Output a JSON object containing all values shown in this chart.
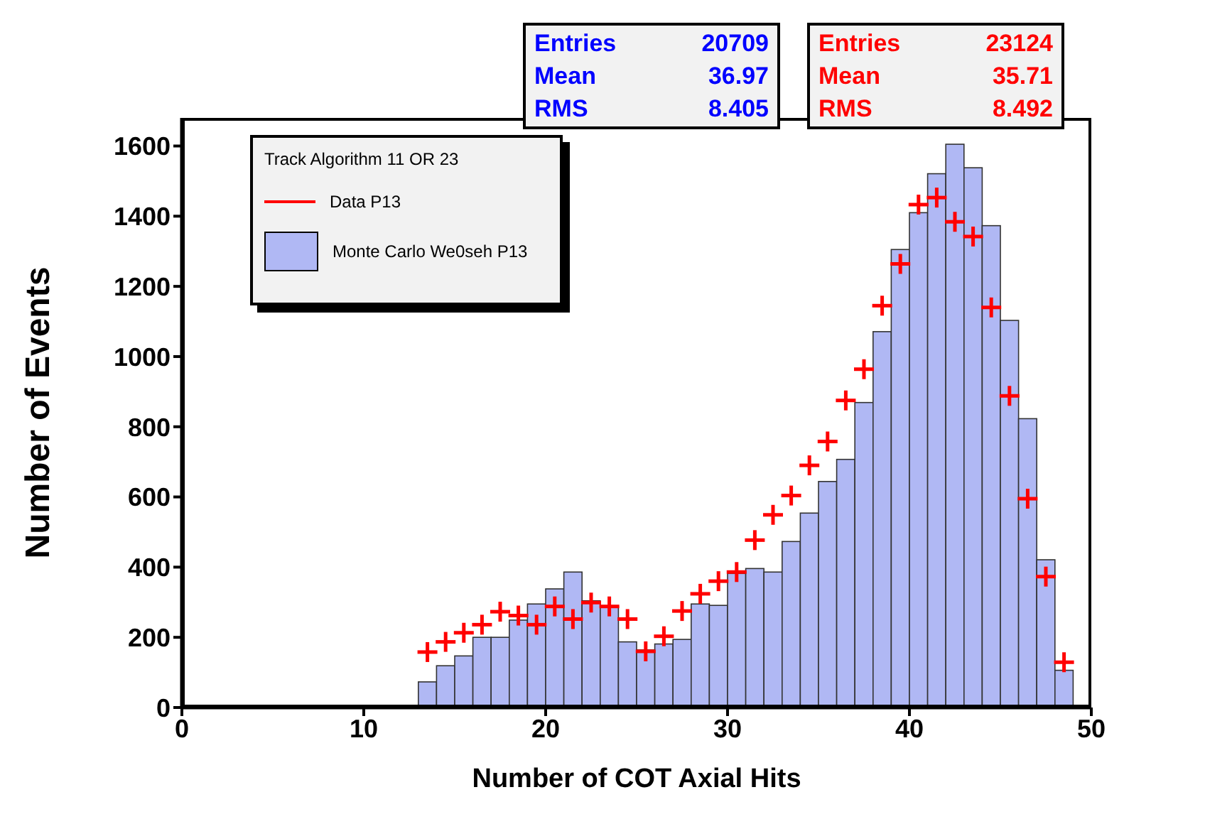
{
  "chart_data": {
    "type": "histogram",
    "xlabel": "Number of COT Axial Hits",
    "ylabel": "Number of Events",
    "legend_title": "Track Algorithm 11 OR 23",
    "legend": "top left",
    "marker": "cross",
    "xlim": [
      0,
      50
    ],
    "xticks": [
      0,
      10,
      20,
      30,
      40,
      50
    ],
    "ylim": [
      0,
      1680
    ],
    "yticks": [
      0,
      200,
      400,
      600,
      800,
      1000,
      1200,
      1400,
      1600
    ],
    "annotations": [
      "Entries 20709",
      "Mean 36.97",
      "RMS 8.405",
      "Entries 23124",
      "Mean 35.71",
      "RMS 8.492"
    ],
    "series": [
      {
        "type": "scatter",
        "name": "Data P13",
        "color": "#ff0000",
        "x": [
          13.5,
          14.5,
          15.5,
          16.5,
          17.5,
          18.5,
          19.5,
          20.5,
          21.5,
          22.5,
          23.5,
          24.5,
          25.5,
          26.5,
          27.5,
          28.5,
          29.5,
          30.5,
          31.5,
          32.5,
          33.5,
          34.5,
          35.5,
          36.5,
          37.5,
          38.5,
          39.5,
          40.5,
          41.5,
          42.5,
          43.5,
          44.5,
          45.5,
          46.5,
          47.5,
          48.5
        ],
        "values": [
          158,
          187,
          213,
          236,
          273,
          262,
          236,
          288,
          252,
          299,
          288,
          252,
          160,
          203,
          275,
          324,
          360,
          386,
          477,
          549,
          604,
          690,
          758,
          875,
          964,
          1145,
          1264,
          1433,
          1453,
          1384,
          1342,
          1140,
          888,
          595,
          373,
          129
        ]
      },
      {
        "name": "Monte Carlo We0seh P13",
        "color": "#b0b8f4",
        "bins": [
          13,
          14,
          15,
          16,
          17,
          18,
          19,
          20,
          21,
          22,
          23,
          24,
          25,
          26,
          27,
          28,
          29,
          30,
          31,
          32,
          33,
          34,
          35,
          36,
          37,
          38,
          39,
          40,
          41,
          42,
          43,
          44,
          45,
          46,
          47,
          48,
          49
        ],
        "values": [
          73,
          119,
          147,
          200,
          200,
          249,
          295,
          338,
          386,
          304,
          288,
          187,
          164,
          181,
          194,
          295,
          291,
          382,
          396,
          386,
          473,
          554,
          644,
          707,
          869,
          1071,
          1305,
          1410,
          1521,
          1605,
          1538,
          1373,
          1103,
          823,
          421,
          106
        ]
      }
    ]
  }
}
